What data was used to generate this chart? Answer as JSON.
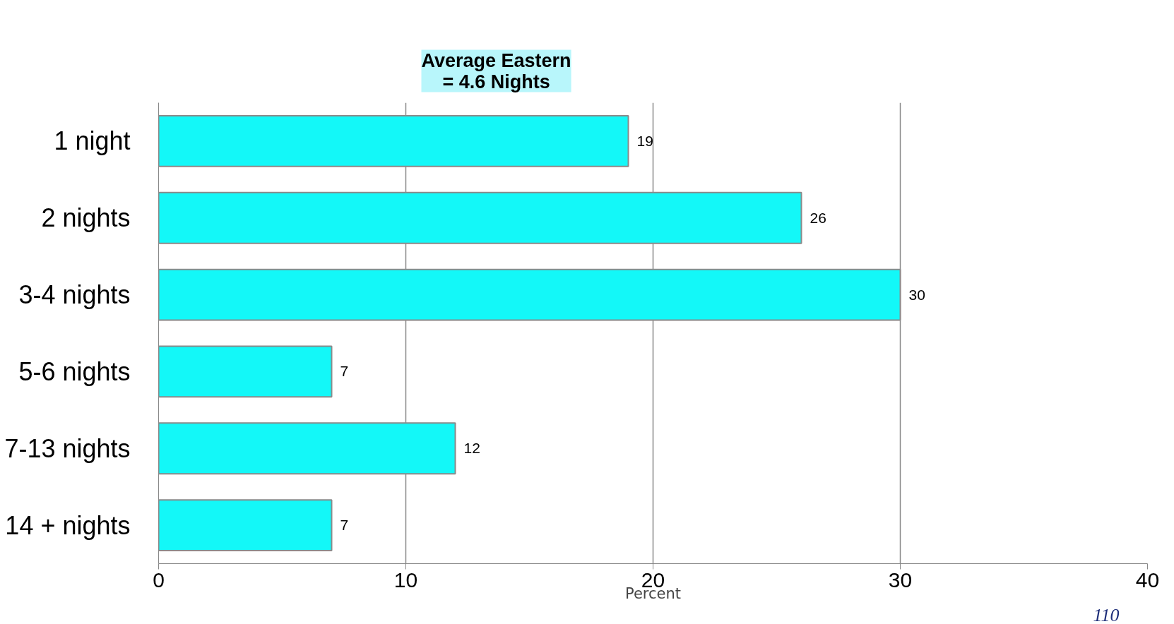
{
  "chart_data": {
    "type": "bar",
    "orientation": "horizontal",
    "title": "Average Eastern\n= 4.6 Nights",
    "xlabel": "Percent",
    "categories": [
      "1 night",
      "2 nights",
      "3-4 nights",
      "5-6 nights",
      "7-13 nights",
      "14 + nights"
    ],
    "values": [
      19,
      26,
      30,
      7,
      12,
      7
    ],
    "color": "#13f8f8",
    "data_labels": true,
    "xlim": [
      0,
      40
    ],
    "xticks": [
      0,
      10,
      20,
      30,
      40
    ],
    "grid": "x",
    "annotations": [
      "110"
    ]
  }
}
